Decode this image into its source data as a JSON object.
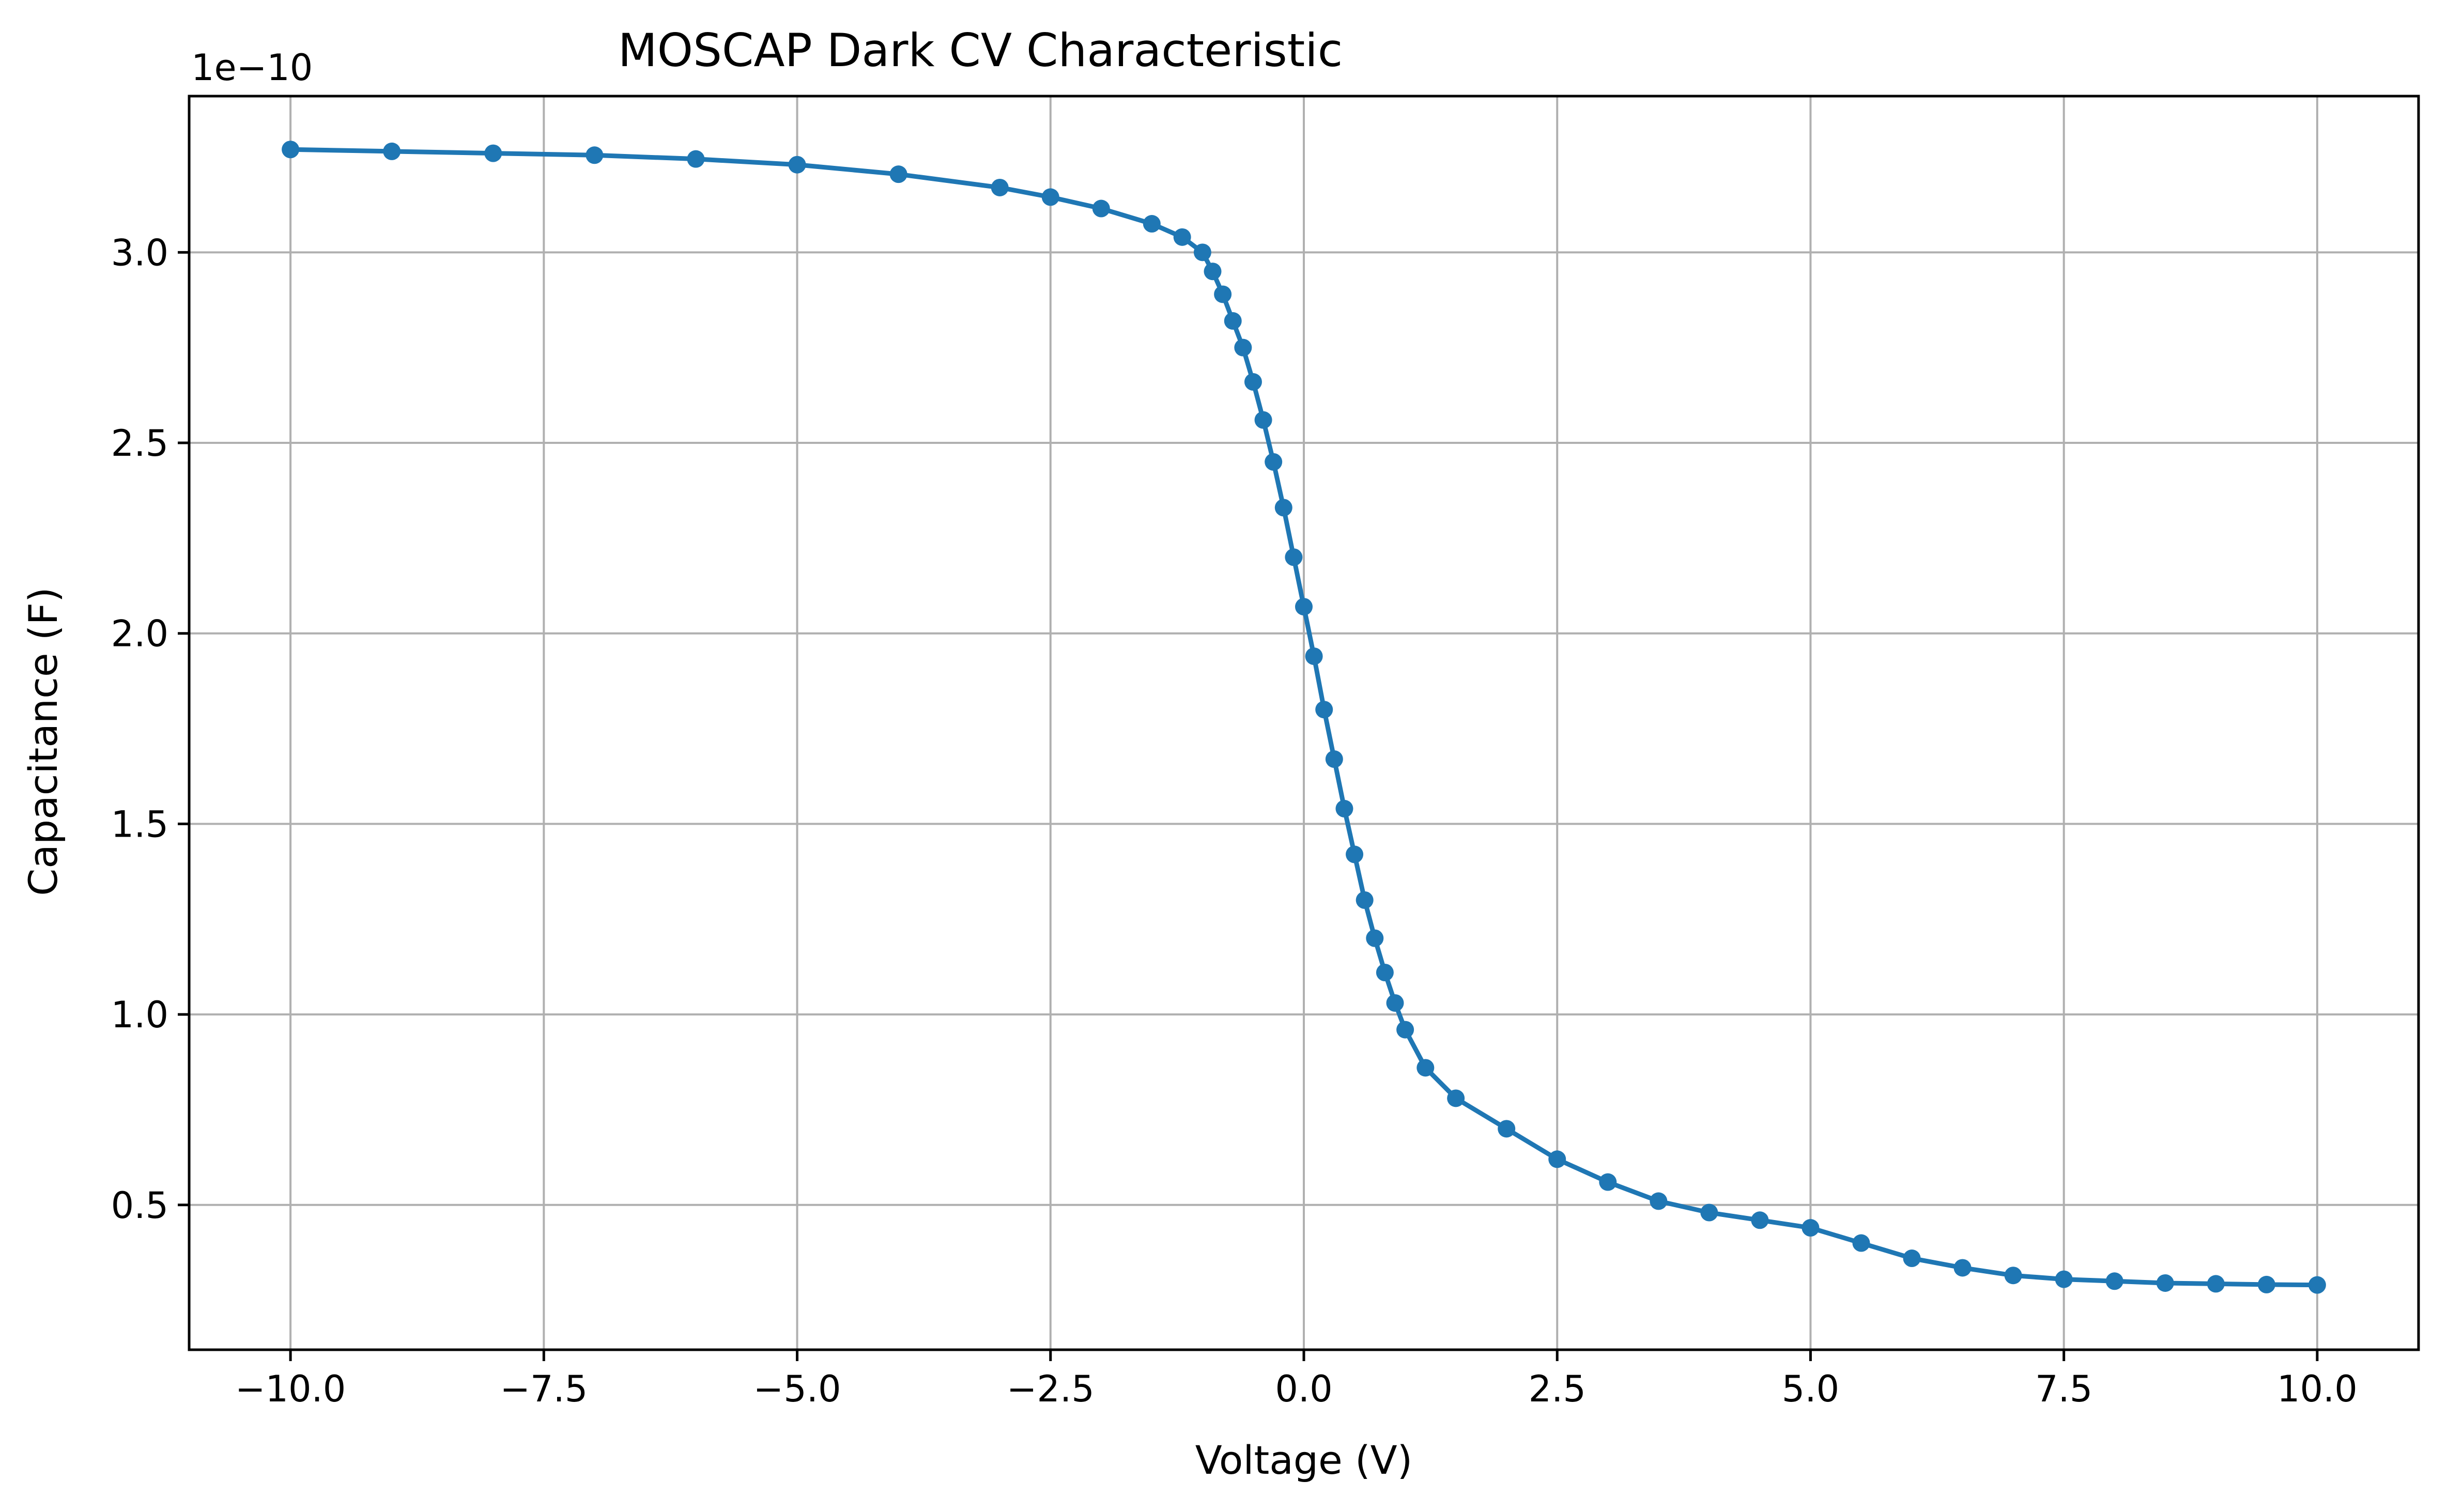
{
  "chart_data": {
    "type": "line",
    "title": "MOSCAP Dark CV Characteristic",
    "xlabel": "Voltage (V)",
    "ylabel": "Capacitance (F)",
    "y_offset_label": "1e−10",
    "y_multiplier": 1e-10,
    "xlim": [
      -11.0,
      11.0
    ],
    "ylim": [
      0.12,
      3.41
    ],
    "grid": true,
    "x_ticks": [
      -10.0,
      -7.5,
      -5.0,
      -2.5,
      0.0,
      2.5,
      5.0,
      7.5,
      10.0
    ],
    "x_tick_labels": [
      "−10.0",
      "−7.5",
      "−5.0",
      "−2.5",
      "0.0",
      "2.5",
      "5.0",
      "7.5",
      "10.0"
    ],
    "y_ticks": [
      0.5,
      1.0,
      1.5,
      2.0,
      2.5,
      3.0
    ],
    "y_tick_labels": [
      "0.5",
      "1.0",
      "1.5",
      "2.0",
      "2.5",
      "3.0"
    ],
    "color": "#1f77b4",
    "marker": "circle",
    "series": [
      {
        "x": [
          -10.0,
          -9.0,
          -8.0,
          -7.0,
          -6.0,
          -5.0,
          -4.0,
          -3.0,
          -2.5,
          -2.0,
          -1.5,
          -1.2,
          -1.0,
          -0.9,
          -0.8,
          -0.7,
          -0.6,
          -0.5,
          -0.4,
          -0.3,
          -0.2,
          -0.1,
          0.0,
          0.1,
          0.2,
          0.3,
          0.4,
          0.5,
          0.6,
          0.7,
          0.8,
          0.9,
          1.0,
          1.2,
          1.5,
          2.0,
          2.5,
          3.0,
          3.5,
          4.0,
          4.5,
          5.0,
          5.5,
          6.0,
          6.5,
          7.0,
          7.5,
          8.0,
          8.5,
          9.0,
          9.5,
          10.0
        ],
        "values": [
          3.27,
          3.265,
          3.26,
          3.255,
          3.245,
          3.23,
          3.205,
          3.17,
          3.145,
          3.115,
          3.075,
          3.04,
          3.0,
          2.95,
          2.89,
          2.82,
          2.75,
          2.66,
          2.56,
          2.45,
          2.33,
          2.2,
          2.07,
          1.94,
          1.8,
          1.67,
          1.54,
          1.42,
          1.3,
          1.2,
          1.11,
          1.03,
          0.96,
          0.86,
          0.78,
          0.7,
          0.62,
          0.56,
          0.51,
          0.48,
          0.46,
          0.44,
          0.4,
          0.36,
          0.335,
          0.315,
          0.305,
          0.3,
          0.295,
          0.293,
          0.291,
          0.29
        ]
      }
    ]
  }
}
